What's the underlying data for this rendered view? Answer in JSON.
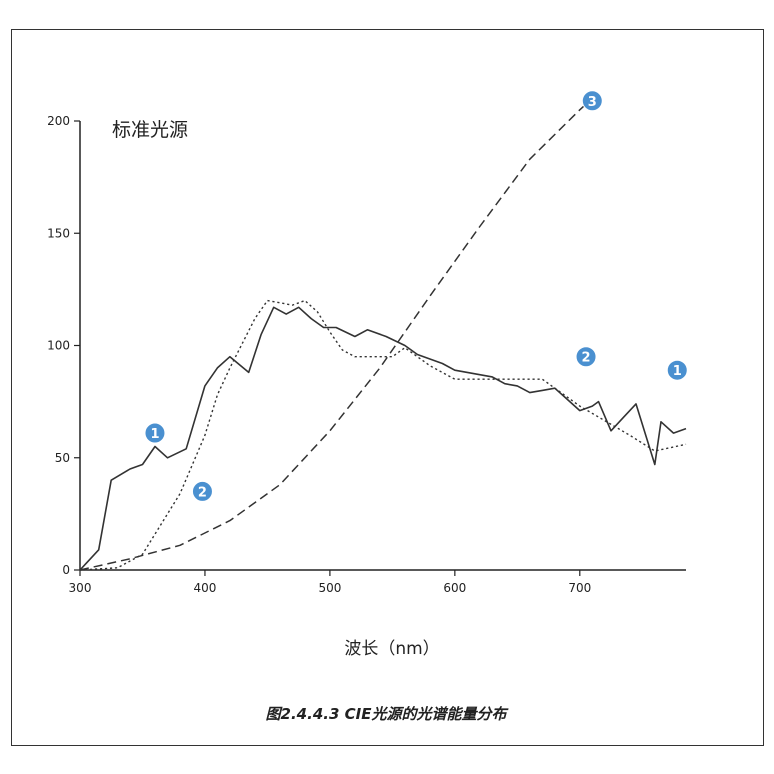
{
  "chart_data": {
    "type": "line",
    "title": "标准光源",
    "xlabel": "波长（nm）",
    "ylabel": "",
    "caption": "图2.4.4.3 CIE光源的光谱能量分布",
    "xlim": [
      300,
      785
    ],
    "ylim": [
      0,
      200
    ],
    "xticks": [
      300,
      400,
      500,
      600,
      700
    ],
    "yticks": [
      0,
      50,
      100,
      150,
      200
    ],
    "legend": "none",
    "series": [
      {
        "name": "1",
        "style": "solid",
        "color": "#333333",
        "x": [
          300,
          305,
          315,
          325,
          340,
          345,
          350,
          360,
          370,
          385,
          400,
          410,
          420,
          435,
          445,
          455,
          465,
          475,
          485,
          495,
          505,
          520,
          530,
          545,
          560,
          570,
          580,
          590,
          600,
          610,
          620,
          630,
          640,
          650,
          660,
          670,
          680,
          690,
          700,
          710,
          715,
          725,
          735,
          745,
          760,
          765,
          775,
          785
        ],
        "y": [
          0,
          3,
          9,
          40,
          45,
          46,
          47,
          55,
          50,
          54,
          82,
          90,
          95,
          88,
          105,
          117,
          114,
          117,
          112,
          108,
          108,
          104,
          107,
          104,
          100,
          96,
          94,
          92,
          89,
          88,
          87,
          86,
          83,
          82,
          79,
          80,
          81,
          76,
          71,
          73,
          75,
          62,
          68,
          74,
          47,
          66,
          61,
          63
        ]
      },
      {
        "name": "2",
        "style": "dotted",
        "color": "#333333",
        "x": [
          300,
          330,
          350,
          360,
          380,
          400,
          410,
          420,
          440,
          450,
          460,
          470,
          480,
          490,
          500,
          510,
          520,
          550,
          560,
          580,
          600,
          640,
          670,
          700,
          740,
          760,
          785
        ],
        "y": [
          0,
          1,
          7,
          16,
          34,
          60,
          78,
          90,
          112,
          120,
          119,
          118,
          120,
          115,
          106,
          98,
          95,
          95,
          99,
          91,
          85,
          85,
          85,
          73,
          60,
          53,
          56
        ]
      },
      {
        "name": "3",
        "style": "dashed",
        "color": "#333333",
        "x": [
          300,
          340,
          380,
          420,
          460,
          500,
          540,
          580,
          620,
          660,
          700,
          710
        ],
        "y": [
          0,
          5,
          11,
          22,
          38,
          62,
          90,
          122,
          153,
          183,
          205,
          210
        ]
      }
    ],
    "markers": [
      {
        "label": "1",
        "x": 360,
        "y": 61,
        "series": "1"
      },
      {
        "label": "2",
        "x": 398,
        "y": 35,
        "series": "2"
      },
      {
        "label": "3",
        "x": 710,
        "y": 209,
        "series": "3"
      },
      {
        "label": "2",
        "x": 705,
        "y": 95,
        "series": "2"
      },
      {
        "label": "1",
        "x": 778,
        "y": 89,
        "series": "1"
      }
    ],
    "accent_color": "#4a90d0"
  }
}
